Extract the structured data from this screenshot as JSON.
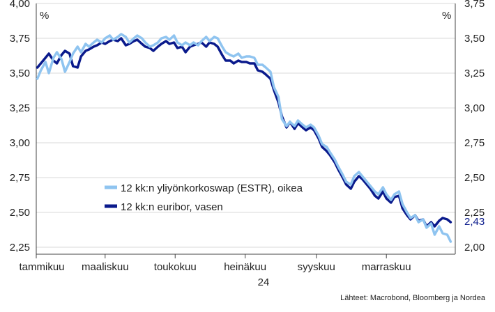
{
  "chart_data": {
    "type": "line",
    "left_axis": {
      "unit": "%",
      "range": [
        2.2,
        4.0
      ],
      "ticks": [
        "4,00",
        "3,75",
        "3,50",
        "3,25",
        "3,00",
        "2,75",
        "2,50",
        "2,25"
      ],
      "tick_values": [
        4.0,
        3.75,
        3.5,
        3.25,
        3.0,
        2.75,
        2.5,
        2.25
      ]
    },
    "right_axis": {
      "unit": "%",
      "range": [
        1.95,
        3.75
      ],
      "ticks": [
        "3,75",
        "3,50",
        "3,25",
        "3,00",
        "2,75",
        "2,50",
        "2,25",
        "2,00"
      ],
      "tick_values": [
        3.75,
        3.5,
        3.25,
        3.0,
        2.75,
        2.5,
        2.25,
        2.0
      ]
    },
    "x_axis": {
      "range": [
        "2024-01-01",
        "2024-12-31"
      ],
      "month_labels": [
        "tammikuu",
        "maaliskuu",
        "toukokuu",
        "heinäkuu",
        "syyskuu",
        "marraskuu"
      ],
      "month_label_dates": [
        "2024-01-01",
        "2024-03-01",
        "2024-05-01",
        "2024-07-01",
        "2024-09-01",
        "2024-11-01"
      ],
      "year_label": "24",
      "year_label_date": "2024-07-01"
    },
    "grid": "horizontal",
    "legend_placement": "center-left",
    "series": [
      {
        "name": "12 kk:n yliyönkorkoswap (ESTR), oikea",
        "axis": "right",
        "color": "#8fc4f0",
        "points": [
          [
            "2024-01-02",
            3.21
          ],
          [
            "2024-01-05",
            3.27
          ],
          [
            "2024-01-09",
            3.33
          ],
          [
            "2024-01-12",
            3.25
          ],
          [
            "2024-01-16",
            3.36
          ],
          [
            "2024-01-19",
            3.4
          ],
          [
            "2024-01-23",
            3.35
          ],
          [
            "2024-01-26",
            3.26
          ],
          [
            "2024-01-30",
            3.33
          ],
          [
            "2024-02-02",
            3.39
          ],
          [
            "2024-02-06",
            3.44
          ],
          [
            "2024-02-09",
            3.4
          ],
          [
            "2024-02-13",
            3.46
          ],
          [
            "2024-02-16",
            3.44
          ],
          [
            "2024-02-20",
            3.47
          ],
          [
            "2024-02-23",
            3.49
          ],
          [
            "2024-02-27",
            3.47
          ],
          [
            "2024-03-01",
            3.5
          ],
          [
            "2024-03-05",
            3.52
          ],
          [
            "2024-03-08",
            3.49
          ],
          [
            "2024-03-12",
            3.51
          ],
          [
            "2024-03-15",
            3.53
          ],
          [
            "2024-03-19",
            3.51
          ],
          [
            "2024-03-22",
            3.47
          ],
          [
            "2024-03-26",
            3.5
          ],
          [
            "2024-03-29",
            3.52
          ],
          [
            "2024-04-02",
            3.5
          ],
          [
            "2024-04-05",
            3.47
          ],
          [
            "2024-04-09",
            3.44
          ],
          [
            "2024-04-12",
            3.45
          ],
          [
            "2024-04-16",
            3.47
          ],
          [
            "2024-04-19",
            3.5
          ],
          [
            "2024-04-23",
            3.51
          ],
          [
            "2024-04-26",
            3.49
          ],
          [
            "2024-04-30",
            3.52
          ],
          [
            "2024-05-03",
            3.47
          ],
          [
            "2024-05-07",
            3.45
          ],
          [
            "2024-05-10",
            3.47
          ],
          [
            "2024-05-14",
            3.45
          ],
          [
            "2024-05-17",
            3.47
          ],
          [
            "2024-05-21",
            3.45
          ],
          [
            "2024-05-24",
            3.48
          ],
          [
            "2024-05-28",
            3.51
          ],
          [
            "2024-05-31",
            3.48
          ],
          [
            "2024-06-04",
            3.51
          ],
          [
            "2024-06-07",
            3.5
          ],
          [
            "2024-06-11",
            3.44
          ],
          [
            "2024-06-14",
            3.4
          ],
          [
            "2024-06-18",
            3.38
          ],
          [
            "2024-06-21",
            3.37
          ],
          [
            "2024-06-25",
            3.39
          ],
          [
            "2024-06-28",
            3.36
          ],
          [
            "2024-07-02",
            3.37
          ],
          [
            "2024-07-05",
            3.37
          ],
          [
            "2024-07-09",
            3.36
          ],
          [
            "2024-07-12",
            3.31
          ],
          [
            "2024-07-16",
            3.31
          ],
          [
            "2024-07-19",
            3.29
          ],
          [
            "2024-07-23",
            3.26
          ],
          [
            "2024-07-26",
            3.15
          ],
          [
            "2024-07-30",
            3.08
          ],
          [
            "2024-08-02",
            2.92
          ],
          [
            "2024-08-06",
            2.87
          ],
          [
            "2024-08-09",
            2.9
          ],
          [
            "2024-08-13",
            2.87
          ],
          [
            "2024-08-16",
            2.91
          ],
          [
            "2024-08-20",
            2.88
          ],
          [
            "2024-08-23",
            2.86
          ],
          [
            "2024-08-27",
            2.88
          ],
          [
            "2024-08-30",
            2.86
          ],
          [
            "2024-09-03",
            2.8
          ],
          [
            "2024-09-06",
            2.74
          ],
          [
            "2024-09-10",
            2.72
          ],
          [
            "2024-09-13",
            2.68
          ],
          [
            "2024-09-17",
            2.63
          ],
          [
            "2024-09-20",
            2.58
          ],
          [
            "2024-09-24",
            2.52
          ],
          [
            "2024-09-27",
            2.47
          ],
          [
            "2024-10-01",
            2.45
          ],
          [
            "2024-10-04",
            2.51
          ],
          [
            "2024-10-08",
            2.54
          ],
          [
            "2024-10-11",
            2.51
          ],
          [
            "2024-10-15",
            2.47
          ],
          [
            "2024-10-18",
            2.44
          ],
          [
            "2024-10-22",
            2.4
          ],
          [
            "2024-10-25",
            2.38
          ],
          [
            "2024-10-29",
            2.43
          ],
          [
            "2024-11-01",
            2.38
          ],
          [
            "2024-11-05",
            2.34
          ],
          [
            "2024-11-08",
            2.38
          ],
          [
            "2024-11-12",
            2.4
          ],
          [
            "2024-11-15",
            2.31
          ],
          [
            "2024-11-19",
            2.25
          ],
          [
            "2024-11-22",
            2.21
          ],
          [
            "2024-11-26",
            2.23
          ],
          [
            "2024-11-29",
            2.18
          ],
          [
            "2024-12-03",
            2.2
          ],
          [
            "2024-12-06",
            2.14
          ],
          [
            "2024-12-10",
            2.17
          ],
          [
            "2024-12-13",
            2.09
          ],
          [
            "2024-12-17",
            2.15
          ],
          [
            "2024-12-20",
            2.1
          ],
          [
            "2024-12-24",
            2.09
          ],
          [
            "2024-12-27",
            2.04
          ]
        ]
      },
      {
        "name": "12 kk:n euribor, vasen",
        "axis": "left",
        "color": "#0a1a8c",
        "last_value_label": "2,43",
        "points": [
          [
            "2024-01-02",
            3.54
          ],
          [
            "2024-01-05",
            3.57
          ],
          [
            "2024-01-09",
            3.61
          ],
          [
            "2024-01-12",
            3.64
          ],
          [
            "2024-01-16",
            3.59
          ],
          [
            "2024-01-19",
            3.57
          ],
          [
            "2024-01-23",
            3.63
          ],
          [
            "2024-01-26",
            3.66
          ],
          [
            "2024-01-30",
            3.64
          ],
          [
            "2024-02-02",
            3.55
          ],
          [
            "2024-02-06",
            3.54
          ],
          [
            "2024-02-09",
            3.62
          ],
          [
            "2024-02-13",
            3.66
          ],
          [
            "2024-02-16",
            3.67
          ],
          [
            "2024-02-20",
            3.69
          ],
          [
            "2024-02-23",
            3.7
          ],
          [
            "2024-02-27",
            3.72
          ],
          [
            "2024-03-01",
            3.71
          ],
          [
            "2024-03-05",
            3.73
          ],
          [
            "2024-03-08",
            3.74
          ],
          [
            "2024-03-12",
            3.73
          ],
          [
            "2024-03-15",
            3.75
          ],
          [
            "2024-03-19",
            3.7
          ],
          [
            "2024-03-22",
            3.71
          ],
          [
            "2024-03-26",
            3.73
          ],
          [
            "2024-03-29",
            3.74
          ],
          [
            "2024-04-02",
            3.71
          ],
          [
            "2024-04-05",
            3.69
          ],
          [
            "2024-04-09",
            3.68
          ],
          [
            "2024-04-12",
            3.66
          ],
          [
            "2024-04-16",
            3.69
          ],
          [
            "2024-04-19",
            3.71
          ],
          [
            "2024-04-23",
            3.73
          ],
          [
            "2024-04-26",
            3.71
          ],
          [
            "2024-04-30",
            3.72
          ],
          [
            "2024-05-03",
            3.68
          ],
          [
            "2024-05-07",
            3.69
          ],
          [
            "2024-05-10",
            3.65
          ],
          [
            "2024-05-14",
            3.69
          ],
          [
            "2024-05-17",
            3.7
          ],
          [
            "2024-05-21",
            3.71
          ],
          [
            "2024-05-24",
            3.72
          ],
          [
            "2024-05-28",
            3.69
          ],
          [
            "2024-05-31",
            3.72
          ],
          [
            "2024-06-04",
            3.71
          ],
          [
            "2024-06-07",
            3.69
          ],
          [
            "2024-06-11",
            3.63
          ],
          [
            "2024-06-14",
            3.59
          ],
          [
            "2024-06-18",
            3.59
          ],
          [
            "2024-06-21",
            3.57
          ],
          [
            "2024-06-25",
            3.59
          ],
          [
            "2024-06-28",
            3.58
          ],
          [
            "2024-07-02",
            3.58
          ],
          [
            "2024-07-05",
            3.57
          ],
          [
            "2024-07-09",
            3.57
          ],
          [
            "2024-07-12",
            3.52
          ],
          [
            "2024-07-16",
            3.51
          ],
          [
            "2024-07-19",
            3.49
          ],
          [
            "2024-07-23",
            3.46
          ],
          [
            "2024-07-26",
            3.38
          ],
          [
            "2024-07-30",
            3.29
          ],
          [
            "2024-08-02",
            3.19
          ],
          [
            "2024-08-06",
            3.11
          ],
          [
            "2024-08-09",
            3.15
          ],
          [
            "2024-08-13",
            3.1
          ],
          [
            "2024-08-16",
            3.14
          ],
          [
            "2024-08-20",
            3.11
          ],
          [
            "2024-08-23",
            3.09
          ],
          [
            "2024-08-27",
            3.11
          ],
          [
            "2024-08-30",
            3.09
          ],
          [
            "2024-09-03",
            3.03
          ],
          [
            "2024-09-06",
            2.97
          ],
          [
            "2024-09-10",
            2.94
          ],
          [
            "2024-09-13",
            2.91
          ],
          [
            "2024-09-17",
            2.86
          ],
          [
            "2024-09-20",
            2.81
          ],
          [
            "2024-09-24",
            2.75
          ],
          [
            "2024-09-27",
            2.7
          ],
          [
            "2024-10-01",
            2.67
          ],
          [
            "2024-10-04",
            2.72
          ],
          [
            "2024-10-08",
            2.76
          ],
          [
            "2024-10-11",
            2.74
          ],
          [
            "2024-10-15",
            2.7
          ],
          [
            "2024-10-18",
            2.67
          ],
          [
            "2024-10-22",
            2.62
          ],
          [
            "2024-10-25",
            2.6
          ],
          [
            "2024-10-29",
            2.65
          ],
          [
            "2024-11-01",
            2.6
          ],
          [
            "2024-11-05",
            2.57
          ],
          [
            "2024-11-08",
            2.61
          ],
          [
            "2024-11-12",
            2.62
          ],
          [
            "2024-11-15",
            2.53
          ],
          [
            "2024-11-19",
            2.48
          ],
          [
            "2024-11-22",
            2.45
          ],
          [
            "2024-11-26",
            2.48
          ],
          [
            "2024-11-29",
            2.44
          ],
          [
            "2024-12-03",
            2.45
          ],
          [
            "2024-12-06",
            2.4
          ],
          [
            "2024-12-10",
            2.43
          ],
          [
            "2024-12-13",
            2.4
          ],
          [
            "2024-12-17",
            2.44
          ],
          [
            "2024-12-20",
            2.46
          ],
          [
            "2024-12-24",
            2.45
          ],
          [
            "2024-12-27",
            2.43
          ]
        ]
      }
    ],
    "source": "Lähteet: Macrobond, Bloomberg ja Nordea"
  }
}
